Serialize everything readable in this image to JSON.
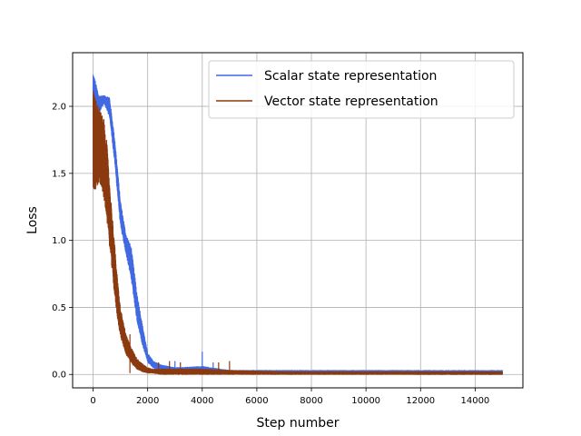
{
  "chart_data": {
    "type": "line",
    "title": "",
    "xlabel": "Step number",
    "ylabel": "Loss",
    "xlim": [
      -750,
      15750
    ],
    "ylim": [
      -0.1,
      2.4
    ],
    "xticks": [
      0,
      2000,
      4000,
      6000,
      8000,
      10000,
      12000,
      14000
    ],
    "yticks": [
      0.0,
      0.5,
      1.0,
      1.5,
      2.0
    ],
    "xtick_labels": [
      "0",
      "2000",
      "4000",
      "6000",
      "8000",
      "10000",
      "12000",
      "14000"
    ],
    "ytick_labels": [
      "0.0",
      "0.5",
      "1.0",
      "1.5",
      "2.0"
    ],
    "grid": true,
    "legend_position": "top-right",
    "series": [
      {
        "name": "Scalar state representation",
        "color": "#4169e1",
        "x": [
          0,
          200,
          400,
          600,
          800,
          1000,
          1200,
          1400,
          1600,
          1800,
          2000,
          2200,
          2500,
          3000,
          4000,
          5000,
          7000,
          10000,
          12000,
          14000,
          15000
        ],
        "upper": [
          2.28,
          2.08,
          2.08,
          2.07,
          1.75,
          1.3,
          1.05,
          0.95,
          0.62,
          0.38,
          0.16,
          0.1,
          0.07,
          0.05,
          0.06,
          0.03,
          0.03,
          0.03,
          0.03,
          0.03,
          0.03
        ],
        "lower": [
          1.4,
          1.95,
          2.02,
          1.92,
          1.55,
          1.1,
          0.9,
          0.7,
          0.4,
          0.22,
          0.09,
          0.05,
          0.03,
          0.02,
          0.01,
          0.01,
          0.01,
          0.01,
          0.0,
          0.0,
          0.0
        ],
        "spikes": [
          [
            4000,
            0.17
          ],
          [
            4400,
            0.09
          ],
          [
            3000,
            0.1
          ]
        ]
      },
      {
        "name": "Vector state representation",
        "color": "#8b3a0f",
        "x": [
          0,
          100,
          200,
          300,
          400,
          500,
          600,
          700,
          800,
          900,
          1000,
          1200,
          1400,
          1600,
          1800,
          2000,
          2200,
          2500,
          3000,
          4000,
          5000,
          7000,
          10000,
          12000,
          14000,
          15000
        ],
        "upper": [
          2.15,
          2.05,
          2.0,
          1.95,
          1.9,
          1.75,
          1.45,
          1.2,
          0.95,
          0.7,
          0.5,
          0.3,
          0.2,
          0.12,
          0.08,
          0.05,
          0.04,
          0.04,
          0.04,
          0.04,
          0.03,
          0.02,
          0.02,
          0.02,
          0.02,
          0.02
        ],
        "lower": [
          1.38,
          1.38,
          1.42,
          1.4,
          1.3,
          1.15,
          0.95,
          0.75,
          0.55,
          0.4,
          0.28,
          0.15,
          0.08,
          0.04,
          0.02,
          0.01,
          0.01,
          0.0,
          0.0,
          0.0,
          0.0,
          0.0,
          0.0,
          0.0,
          0.0,
          0.0
        ],
        "spikes": [
          [
            1350,
            0.3
          ],
          [
            2800,
            0.1
          ],
          [
            3200,
            0.09
          ],
          [
            4600,
            0.09
          ],
          [
            5000,
            0.1
          ],
          [
            2400,
            0.09
          ]
        ]
      }
    ]
  }
}
